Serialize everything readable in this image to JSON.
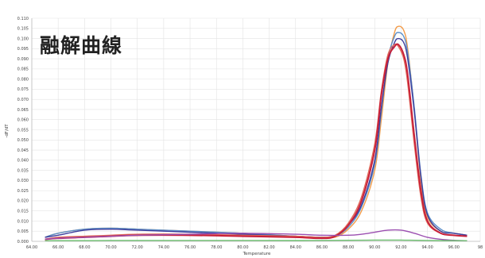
{
  "chart_data": {
    "type": "line",
    "title": "融解曲線",
    "xlabel": "Temperature",
    "ylabel": "-dF/dT",
    "xlim": [
      64,
      98
    ],
    "ylim": [
      0,
      0.11
    ],
    "x_ticks": [
      "64.00",
      "66.00",
      "68.00",
      "70.00",
      "72.00",
      "74.00",
      "76.00",
      "78.00",
      "80.00",
      "82.00",
      "84.00",
      "86.00",
      "88.00",
      "90.00",
      "92.00",
      "94.00",
      "96.00",
      "98"
    ],
    "y_ticks": [
      "0.000",
      "0.005",
      "0.010",
      "0.015",
      "0.020",
      "0.025",
      "0.030",
      "0.035",
      "0.040",
      "0.045",
      "0.050",
      "0.055",
      "0.060",
      "0.065",
      "0.070",
      "0.075",
      "0.080",
      "0.085",
      "0.090",
      "0.095",
      "0.100",
      "0.105",
      "0.110"
    ],
    "grid": true,
    "series": [
      {
        "color": "#f39c4a",
        "x": [
          65,
          66,
          68,
          70,
          72,
          76,
          80,
          84,
          86,
          87,
          88,
          89,
          90,
          90.5,
          91,
          91.5,
          91.8,
          92.2,
          92.5,
          93,
          93.5,
          94,
          95,
          96,
          97
        ],
        "values": [
          0.002,
          0.004,
          0.006,
          0.0065,
          0.006,
          0.005,
          0.004,
          0.0025,
          0.002,
          0.002,
          0.006,
          0.015,
          0.035,
          0.06,
          0.088,
          0.103,
          0.106,
          0.104,
          0.095,
          0.065,
          0.03,
          0.012,
          0.005,
          0.004,
          0.003
        ]
      },
      {
        "color": "#5b8fc9",
        "x": [
          65,
          66,
          68,
          70,
          72,
          76,
          80,
          84,
          86,
          87,
          88,
          89,
          90,
          90.5,
          91,
          91.5,
          91.8,
          92.2,
          92.5,
          93,
          93.5,
          94,
          95,
          96,
          97
        ],
        "values": [
          0.002,
          0.004,
          0.006,
          0.0065,
          0.006,
          0.005,
          0.004,
          0.0025,
          0.002,
          0.0025,
          0.007,
          0.017,
          0.038,
          0.064,
          0.09,
          0.101,
          0.103,
          0.101,
          0.093,
          0.066,
          0.033,
          0.014,
          0.006,
          0.004,
          0.003
        ]
      },
      {
        "color": "#3d3d9c",
        "x": [
          65,
          66,
          68,
          70,
          72,
          76,
          80,
          84,
          86,
          87,
          88,
          89,
          90,
          90.5,
          91,
          91.5,
          91.8,
          92.2,
          92.5,
          93,
          93.5,
          94,
          95,
          96,
          97
        ],
        "values": [
          0.002,
          0.003,
          0.0055,
          0.006,
          0.0055,
          0.0045,
          0.0035,
          0.0025,
          0.002,
          0.003,
          0.008,
          0.018,
          0.04,
          0.066,
          0.088,
          0.098,
          0.1,
          0.098,
          0.09,
          0.064,
          0.032,
          0.013,
          0.005,
          0.004,
          0.003
        ]
      },
      {
        "color": "#e06a5a",
        "x": [
          65,
          66,
          68,
          70,
          72,
          76,
          80,
          84,
          86,
          87,
          88,
          89,
          90,
          90.5,
          91,
          91.5,
          91.8,
          92.2,
          92.5,
          93,
          93.5,
          94,
          95,
          96,
          97
        ],
        "values": [
          0.001,
          0.002,
          0.0025,
          0.003,
          0.0035,
          0.0035,
          0.003,
          0.0025,
          0.002,
          0.003,
          0.009,
          0.022,
          0.048,
          0.074,
          0.092,
          0.097,
          0.096,
          0.09,
          0.078,
          0.048,
          0.022,
          0.009,
          0.004,
          0.003,
          0.0025
        ]
      },
      {
        "color": "#c8203a",
        "x": [
          65,
          66,
          68,
          70,
          72,
          76,
          80,
          84,
          86,
          87,
          88,
          89,
          90,
          90.5,
          91,
          91.5,
          91.8,
          92.2,
          92.5,
          93,
          93.5,
          94,
          95,
          96,
          97
        ],
        "values": [
          0.001,
          0.0015,
          0.002,
          0.0025,
          0.003,
          0.003,
          0.0025,
          0.002,
          0.0015,
          0.0025,
          0.008,
          0.02,
          0.045,
          0.072,
          0.09,
          0.096,
          0.097,
          0.092,
          0.082,
          0.052,
          0.025,
          0.01,
          0.004,
          0.003,
          0.0025
        ]
      },
      {
        "color": "#9b4fb0",
        "x": [
          65,
          66,
          68,
          70,
          72,
          76,
          80,
          84,
          86,
          88,
          89,
          90,
          91,
          92,
          93,
          94,
          95,
          96,
          97
        ],
        "values": [
          0.001,
          0.0015,
          0.002,
          0.0025,
          0.003,
          0.0035,
          0.004,
          0.0035,
          0.003,
          0.003,
          0.0035,
          0.0045,
          0.0055,
          0.0055,
          0.004,
          0.002,
          0.001,
          0.0005,
          0.0003
        ]
      },
      {
        "color": "#6dc070",
        "x": [
          65,
          70,
          80,
          85,
          88,
          90,
          92,
          94,
          97
        ],
        "values": [
          0.0003,
          0.0004,
          0.0004,
          0.0004,
          0.0005,
          0.0006,
          0.0006,
          0.0004,
          0.0003
        ]
      }
    ]
  }
}
